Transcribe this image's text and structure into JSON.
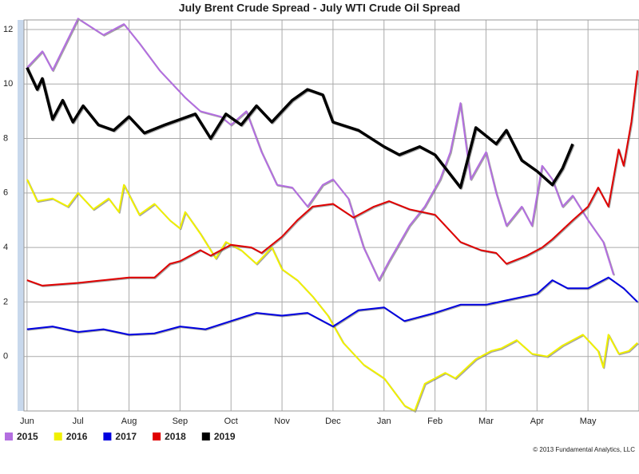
{
  "chart_data": {
    "type": "line",
    "title": "July Brent Crude Spread - July WTI Crude Oil Spread",
    "footnote": "© 2013 Fundamental Analytics, LLC",
    "xlim": [
      -0.06,
      12.0
    ],
    "xticks": [
      {
        "value": 0,
        "label": "Jun"
      },
      {
        "value": 1,
        "label": "Jul"
      },
      {
        "value": 2,
        "label": "Aug"
      },
      {
        "value": 3,
        "label": "Sep"
      },
      {
        "value": 4,
        "label": "Oct"
      },
      {
        "value": 5,
        "label": "Nov"
      },
      {
        "value": 6,
        "label": "Dec"
      },
      {
        "value": 7,
        "label": "Jan"
      },
      {
        "value": 8,
        "label": "Feb"
      },
      {
        "value": 9,
        "label": "Mar"
      },
      {
        "value": 10,
        "label": "Apr"
      },
      {
        "value": 11,
        "label": "May"
      }
    ],
    "ylim": [
      -2,
      12.35
    ],
    "yticks": [
      0,
      2,
      4,
      6,
      8,
      10,
      12
    ],
    "grid": true,
    "legend": "bottom-left",
    "series": [
      {
        "name": "2015",
        "color": "#b36ee0",
        "x": [
          0,
          0.3,
          0.5,
          1.0,
          1.5,
          1.9,
          2.2,
          2.6,
          3.1,
          3.4,
          3.8,
          4.0,
          4.3,
          4.6,
          4.9,
          5.2,
          5.5,
          5.8,
          6.0,
          6.3,
          6.6,
          6.9,
          7.1,
          7.5,
          7.8,
          8.1,
          8.3,
          8.5,
          8.7,
          9.0,
          9.2,
          9.4,
          9.7,
          9.9,
          10.1,
          10.3,
          10.5,
          10.7,
          11.0,
          11.3,
          11.5
        ],
        "values": [
          10.6,
          11.2,
          10.5,
          12.4,
          11.8,
          12.2,
          11.5,
          10.5,
          9.5,
          9.0,
          8.8,
          8.5,
          9.0,
          7.5,
          6.3,
          6.2,
          5.5,
          6.3,
          6.5,
          5.8,
          4.0,
          2.8,
          3.5,
          4.8,
          5.5,
          6.5,
          7.5,
          9.3,
          6.5,
          7.5,
          6.0,
          4.8,
          5.5,
          4.8,
          7.0,
          6.5,
          5.5,
          5.9,
          5.0,
          4.2,
          3.0
        ]
      },
      {
        "name": "2016",
        "color": "#f0f000",
        "x": [
          0,
          0.2,
          0.5,
          0.8,
          1.0,
          1.3,
          1.6,
          1.8,
          1.9,
          2.2,
          2.5,
          2.8,
          3.0,
          3.1,
          3.4,
          3.7,
          3.9,
          4.2,
          4.5,
          4.8,
          5.0,
          5.3,
          5.6,
          5.9,
          6.2,
          6.6,
          7.0,
          7.4,
          7.6,
          7.8,
          8.2,
          8.4,
          8.8,
          9.1,
          9.3,
          9.6,
          9.9,
          10.2,
          10.5,
          10.9,
          11.2,
          11.3,
          11.4,
          11.6,
          11.8,
          11.97
        ],
        "values": [
          6.5,
          5.7,
          5.8,
          5.5,
          6.0,
          5.4,
          5.8,
          5.3,
          6.3,
          5.2,
          5.6,
          5.0,
          4.7,
          5.3,
          4.5,
          3.6,
          4.2,
          3.9,
          3.4,
          4.0,
          3.2,
          2.8,
          2.2,
          1.5,
          0.5,
          -0.3,
          -0.8,
          -1.8,
          -2.0,
          -1.0,
          -0.6,
          -0.8,
          -0.1,
          0.2,
          0.3,
          0.6,
          0.1,
          0.0,
          0.4,
          0.8,
          0.2,
          -0.4,
          0.8,
          0.1,
          0.2,
          0.5
        ]
      },
      {
        "name": "2017",
        "color": "#0000e0",
        "x": [
          0,
          0.5,
          1.0,
          1.5,
          2.0,
          2.5,
          3.0,
          3.5,
          4.0,
          4.5,
          5.0,
          5.5,
          6.0,
          6.5,
          7.0,
          7.4,
          8.0,
          8.5,
          9.0,
          9.5,
          10.0,
          10.3,
          10.6,
          11.0,
          11.4,
          11.7,
          11.97
        ],
        "values": [
          1.0,
          1.1,
          0.9,
          1.0,
          0.8,
          0.85,
          1.1,
          1.0,
          1.3,
          1.6,
          1.5,
          1.6,
          1.1,
          1.7,
          1.8,
          1.3,
          1.6,
          1.9,
          1.9,
          2.1,
          2.3,
          2.8,
          2.5,
          2.5,
          2.9,
          2.5,
          2.0
        ]
      },
      {
        "name": "2018",
        "color": "#e00000",
        "x": [
          0,
          0.3,
          1.0,
          1.5,
          2.0,
          2.5,
          2.8,
          3.0,
          3.4,
          3.6,
          4.0,
          4.4,
          4.6,
          5.0,
          5.3,
          5.6,
          6.0,
          6.4,
          6.8,
          7.1,
          7.5,
          8.0,
          8.5,
          8.9,
          9.2,
          9.4,
          9.8,
          10.1,
          10.3,
          10.7,
          11.0,
          11.2,
          11.4,
          11.6,
          11.7,
          11.85,
          11.97
        ],
        "values": [
          2.8,
          2.6,
          2.7,
          2.8,
          2.9,
          2.9,
          3.4,
          3.5,
          3.9,
          3.7,
          4.1,
          4.0,
          3.8,
          4.4,
          5.0,
          5.5,
          5.6,
          5.1,
          5.5,
          5.7,
          5.4,
          5.2,
          4.2,
          3.9,
          3.8,
          3.4,
          3.7,
          4.0,
          4.3,
          5.0,
          5.5,
          6.2,
          5.5,
          7.6,
          7.0,
          8.6,
          10.5
        ]
      },
      {
        "name": "2019",
        "color": "#000000",
        "x": [
          0,
          0.2,
          0.3,
          0.5,
          0.7,
          0.9,
          1.1,
          1.4,
          1.7,
          2.0,
          2.3,
          2.7,
          3.0,
          3.3,
          3.6,
          3.9,
          4.2,
          4.5,
          4.8,
          5.2,
          5.5,
          5.8,
          6.0,
          6.5,
          7.0,
          7.3,
          7.7,
          8.0,
          8.5,
          8.8,
          9.2,
          9.4,
          9.7,
          10.0,
          10.3,
          10.5,
          10.7
        ],
        "values": [
          10.6,
          9.8,
          10.2,
          8.7,
          9.4,
          8.6,
          9.2,
          8.5,
          8.3,
          8.8,
          8.2,
          8.5,
          8.7,
          8.9,
          8.0,
          8.9,
          8.5,
          9.2,
          8.6,
          9.4,
          9.8,
          9.6,
          8.6,
          8.3,
          7.7,
          7.4,
          7.7,
          7.4,
          6.2,
          8.4,
          7.8,
          8.3,
          7.2,
          6.8,
          6.3,
          6.9,
          7.8
        ]
      }
    ]
  }
}
